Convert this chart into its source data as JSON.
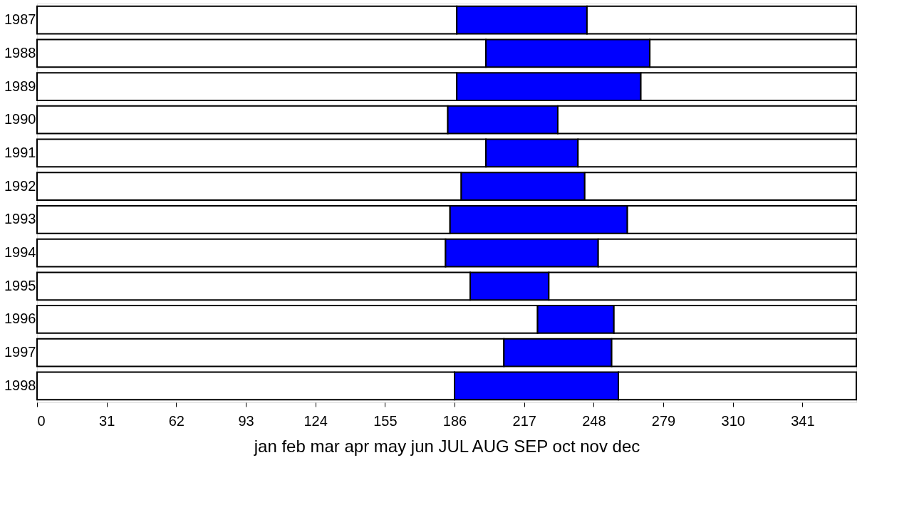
{
  "chart_data": {
    "type": "bar",
    "orientation": "horizontal",
    "stacked": true,
    "categories": [
      "1987",
      "1988",
      "1989",
      "1990",
      "1991",
      "1992",
      "1993",
      "1994",
      "1995",
      "1996",
      "1997",
      "1998"
    ],
    "series": [
      {
        "color": "#ffffff",
        "values": [
          187,
          200,
          187,
          183,
          200,
          189,
          184,
          182,
          193,
          223,
          208,
          186
        ]
      },
      {
        "color": "#0000ff",
        "values": [
          58,
          73,
          82,
          49,
          41,
          55,
          79,
          68,
          35,
          34,
          48,
          73
        ]
      },
      {
        "color": "#ffffff",
        "values": [
          120,
          92,
          96,
          133,
          124,
          121,
          102,
          115,
          137,
          108,
          109,
          106
        ]
      }
    ],
    "xlim": [
      0,
      365
    ],
    "xticks": [
      0,
      31,
      62,
      93,
      124,
      155,
      186,
      217,
      248,
      279,
      310,
      341
    ],
    "xlabel": "jan     feb     mar     apr     may     jun     JUL   AUG   SEP     oct     nov     dec",
    "grid": false
  }
}
